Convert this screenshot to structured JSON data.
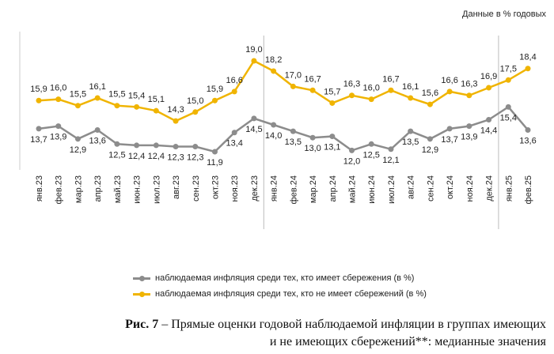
{
  "units_note": "Данные в % годовых",
  "chart_data": {
    "type": "line",
    "title": "Прямые оценки годовой наблюдаемой инфляции в группах имеющих и не имеющих сбережений**: медианные значения",
    "xlabel": "",
    "ylabel": "",
    "categories": [
      "янв.23",
      "фев.23",
      "мар.23",
      "апр.23",
      "май.23",
      "июн.23",
      "июл.23",
      "авг.23",
      "сен.23",
      "окт.23",
      "ноя.23",
      "дек.23",
      "янв.24",
      "фев.24",
      "мар.24",
      "апр.24",
      "май.24",
      "июн.24",
      "июл.24",
      "авг.24",
      "сен.24",
      "окт.24",
      "ноя.24",
      "дек.24",
      "янв.25",
      "фев.25"
    ],
    "series": [
      {
        "name": "наблюдаемая инфляция среди тех, кто имеет сбережения (в %)",
        "color": "#8c8c8c",
        "values": [
          13.7,
          13.9,
          12.9,
          13.6,
          12.5,
          12.4,
          12.4,
          12.3,
          12.3,
          11.9,
          13.4,
          14.5,
          14.0,
          13.5,
          13.0,
          13.1,
          12.0,
          12.5,
          12.1,
          13.5,
          12.9,
          13.7,
          13.9,
          14.4,
          15.4,
          13.6
        ]
      },
      {
        "name": "наблюдаемая инфляция среди тех, кто не имеет сбережений (в %)",
        "color": "#f0b400",
        "values": [
          15.9,
          16.0,
          15.5,
          16.1,
          15.5,
          15.4,
          15.1,
          14.3,
          15.0,
          15.9,
          16.6,
          19.0,
          18.2,
          17.0,
          16.7,
          15.7,
          16.3,
          16.0,
          16.7,
          16.1,
          15.6,
          16.6,
          16.3,
          16.9,
          17.5,
          18.4
        ]
      }
    ],
    "year_separators_after": [
      "дек.23",
      "дек.24"
    ],
    "grid": false,
    "legend": "bottom"
  },
  "caption": {
    "fig": "Рис. 7",
    "line1": " – Прямые оценки годовой наблюдаемой инфляции в группах имеющих",
    "line2": "и не имеющих сбережений**: медианные значения"
  }
}
